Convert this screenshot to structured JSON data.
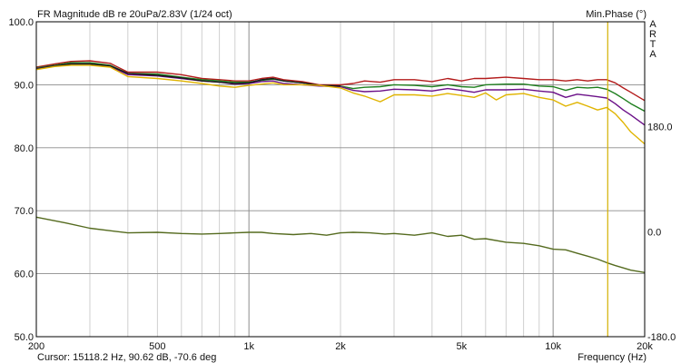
{
  "window": {
    "title": "FR Magnitude dB re 20uPa/2.83V (1/24 oct)",
    "right_axis_title": "Min.Phase (°)",
    "x_axis_title": "Frequency (Hz)",
    "brand_letters": [
      "A",
      "R",
      "T",
      "A"
    ],
    "cursor_readout": "Cursor: 15118.2 Hz, 90.62 dB, -70.6 deg"
  },
  "colors": {
    "background": "#ffffff",
    "grid": "#c4c4c4",
    "grid_major": "#8c8c8c",
    "axis": "#000000",
    "cursor_line": "#d4b000",
    "series_red": "#b31b1b",
    "series_green": "#1e7f1e",
    "series_purple": "#6b1088",
    "series_black": "#1a1a1a",
    "series_yellow": "#e0b400",
    "series_phase": "#556b1f"
  },
  "chart_data": {
    "type": "line",
    "x_scale": "log",
    "xlim": [
      200,
      20000
    ],
    "ylim": [
      50,
      100
    ],
    "y2lim": [
      -180,
      360
    ],
    "x_ticks": [
      200,
      500,
      1000,
      2000,
      5000,
      10000,
      20000
    ],
    "x_tick_labels": [
      "200",
      "500",
      "1k",
      "2k",
      "5k",
      "10k",
      "20k"
    ],
    "y_ticks": [
      50,
      60,
      70,
      80,
      90,
      100
    ],
    "y_tick_labels": [
      "50.0",
      "60.0",
      "70.0",
      "80.0",
      "90.0",
      "100.0"
    ],
    "y2_ticks": [
      -180,
      0,
      180
    ],
    "y2_tick_labels": [
      "-180.0",
      "0.0",
      "180.0"
    ],
    "grid": true,
    "cursor": {
      "x": 15118.2
    },
    "series": [
      {
        "axis": "left",
        "color": "#b31b1b",
        "x": [
          200,
          230,
          260,
          300,
          350,
          400,
          500,
          600,
          700,
          800,
          900,
          1000,
          1100,
          1200,
          1300,
          1500,
          1700,
          2000,
          2200,
          2400,
          2700,
          3000,
          3500,
          4000,
          4500,
          5000,
          5500,
          6000,
          7000,
          8000,
          9000,
          10000,
          11000,
          12000,
          13000,
          14000,
          15000,
          16000,
          17000,
          18000,
          20000
        ],
        "y": [
          92.8,
          93.3,
          93.7,
          93.8,
          93.4,
          92.0,
          92.0,
          91.6,
          91.0,
          90.8,
          90.6,
          90.6,
          91.0,
          91.2,
          90.8,
          90.5,
          90.0,
          90.0,
          90.2,
          90.6,
          90.4,
          90.8,
          90.8,
          90.5,
          91.0,
          90.6,
          91.0,
          91.0,
          91.2,
          91.0,
          90.8,
          90.8,
          90.6,
          90.8,
          90.6,
          90.8,
          90.8,
          90.3,
          89.5,
          88.8,
          87.5
        ]
      },
      {
        "axis": "left",
        "color": "#1e7f1e",
        "x": [
          200,
          230,
          260,
          300,
          350,
          400,
          500,
          600,
          700,
          800,
          900,
          1000,
          1100,
          1200,
          1300,
          1500,
          1700,
          2000,
          2200,
          2400,
          2700,
          3000,
          3500,
          4000,
          4500,
          5000,
          5500,
          6000,
          7000,
          8000,
          9000,
          10000,
          11000,
          12000,
          13000,
          14000,
          15000,
          16000,
          17000,
          18000,
          20000
        ],
        "y": [
          92.7,
          93.1,
          93.5,
          93.5,
          93.1,
          91.8,
          91.7,
          91.2,
          90.8,
          90.6,
          90.4,
          90.4,
          90.7,
          90.9,
          90.6,
          90.3,
          89.9,
          89.8,
          89.4,
          89.6,
          89.7,
          90.0,
          89.9,
          89.7,
          90.0,
          89.7,
          89.6,
          90.0,
          90.1,
          90.1,
          89.8,
          89.7,
          89.1,
          89.6,
          89.5,
          89.6,
          89.3,
          88.6,
          87.8,
          87.0,
          85.8
        ]
      },
      {
        "axis": "left",
        "color": "#6b1088",
        "x": [
          200,
          230,
          260,
          300,
          350,
          400,
          500,
          600,
          700,
          800,
          900,
          1000,
          1100,
          1200,
          1300,
          1500,
          1700,
          2000,
          2200,
          2400,
          2700,
          3000,
          3500,
          4000,
          4500,
          5000,
          5500,
          6000,
          7000,
          8000,
          9000,
          10000,
          11000,
          12000,
          13000,
          14000,
          15000,
          16000,
          17000,
          18000,
          20000
        ],
        "y": [
          92.6,
          93.0,
          93.3,
          93.3,
          92.9,
          91.6,
          91.4,
          91.0,
          90.6,
          90.4,
          90.1,
          90.2,
          90.5,
          90.6,
          90.2,
          90.0,
          89.8,
          89.7,
          89.1,
          88.9,
          89.0,
          89.3,
          89.2,
          89.0,
          89.4,
          89.1,
          88.8,
          89.2,
          89.2,
          89.3,
          89.0,
          88.8,
          88.0,
          88.5,
          88.3,
          88.1,
          87.9,
          87.0,
          86.0,
          85.2,
          83.6
        ]
      },
      {
        "axis": "left",
        "color": "#1a1a1a",
        "x": [
          200,
          230,
          260,
          300,
          350,
          400,
          500,
          600,
          700,
          800,
          900,
          1000,
          1100,
          1200,
          1300,
          1500,
          1700,
          2000
        ],
        "y": [
          92.5,
          93.0,
          93.3,
          93.3,
          93.0,
          91.8,
          91.5,
          91.1,
          90.6,
          90.4,
          90.2,
          90.3,
          90.8,
          91.0,
          90.6,
          90.3,
          89.9,
          89.8
        ]
      },
      {
        "axis": "left",
        "color": "#e0b400",
        "x": [
          200,
          230,
          260,
          300,
          350,
          400,
          500,
          600,
          700,
          800,
          900,
          1000,
          1100,
          1200,
          1300,
          1500,
          1700,
          2000,
          2200,
          2400,
          2700,
          3000,
          3500,
          4000,
          4500,
          5000,
          5500,
          6000,
          6500,
          7000,
          8000,
          9000,
          10000,
          11000,
          12000,
          13000,
          14000,
          15000,
          16000,
          17000,
          18000,
          20000
        ],
        "y": [
          92.4,
          92.9,
          93.1,
          93.1,
          92.8,
          91.3,
          91.0,
          90.6,
          90.2,
          89.8,
          89.6,
          89.9,
          90.1,
          90.3,
          90.0,
          90.0,
          89.9,
          89.5,
          88.7,
          88.2,
          87.3,
          88.4,
          88.4,
          88.2,
          88.6,
          88.3,
          88.0,
          88.7,
          87.6,
          88.4,
          88.6,
          88.0,
          87.6,
          86.6,
          87.2,
          86.6,
          86.0,
          86.4,
          85.4,
          84.0,
          82.5,
          80.6
        ]
      },
      {
        "axis": "right",
        "color": "#556b1f",
        "x": [
          200,
          250,
          300,
          400,
          500,
          600,
          700,
          800,
          900,
          1000,
          1100,
          1200,
          1400,
          1600,
          1800,
          2000,
          2200,
          2500,
          2800,
          3000,
          3500,
          4000,
          4500,
          5000,
          5500,
          6000,
          7000,
          8000,
          9000,
          10000,
          11000,
          12000,
          13000,
          14000,
          15000,
          16000,
          17000,
          18000,
          20000
        ],
        "y": [
          25,
          15,
          6,
          -2,
          -1,
          -3,
          -4,
          -3,
          -2,
          -1,
          -1,
          -3,
          -5,
          -3,
          -6,
          -2,
          -1,
          -2,
          -4,
          -3,
          -6,
          -2,
          -8,
          -6,
          -13,
          -12,
          -18,
          -20,
          -24,
          -30,
          -31,
          -37,
          -42,
          -47,
          -53,
          -58,
          -62,
          -66,
          -70
        ]
      }
    ]
  }
}
